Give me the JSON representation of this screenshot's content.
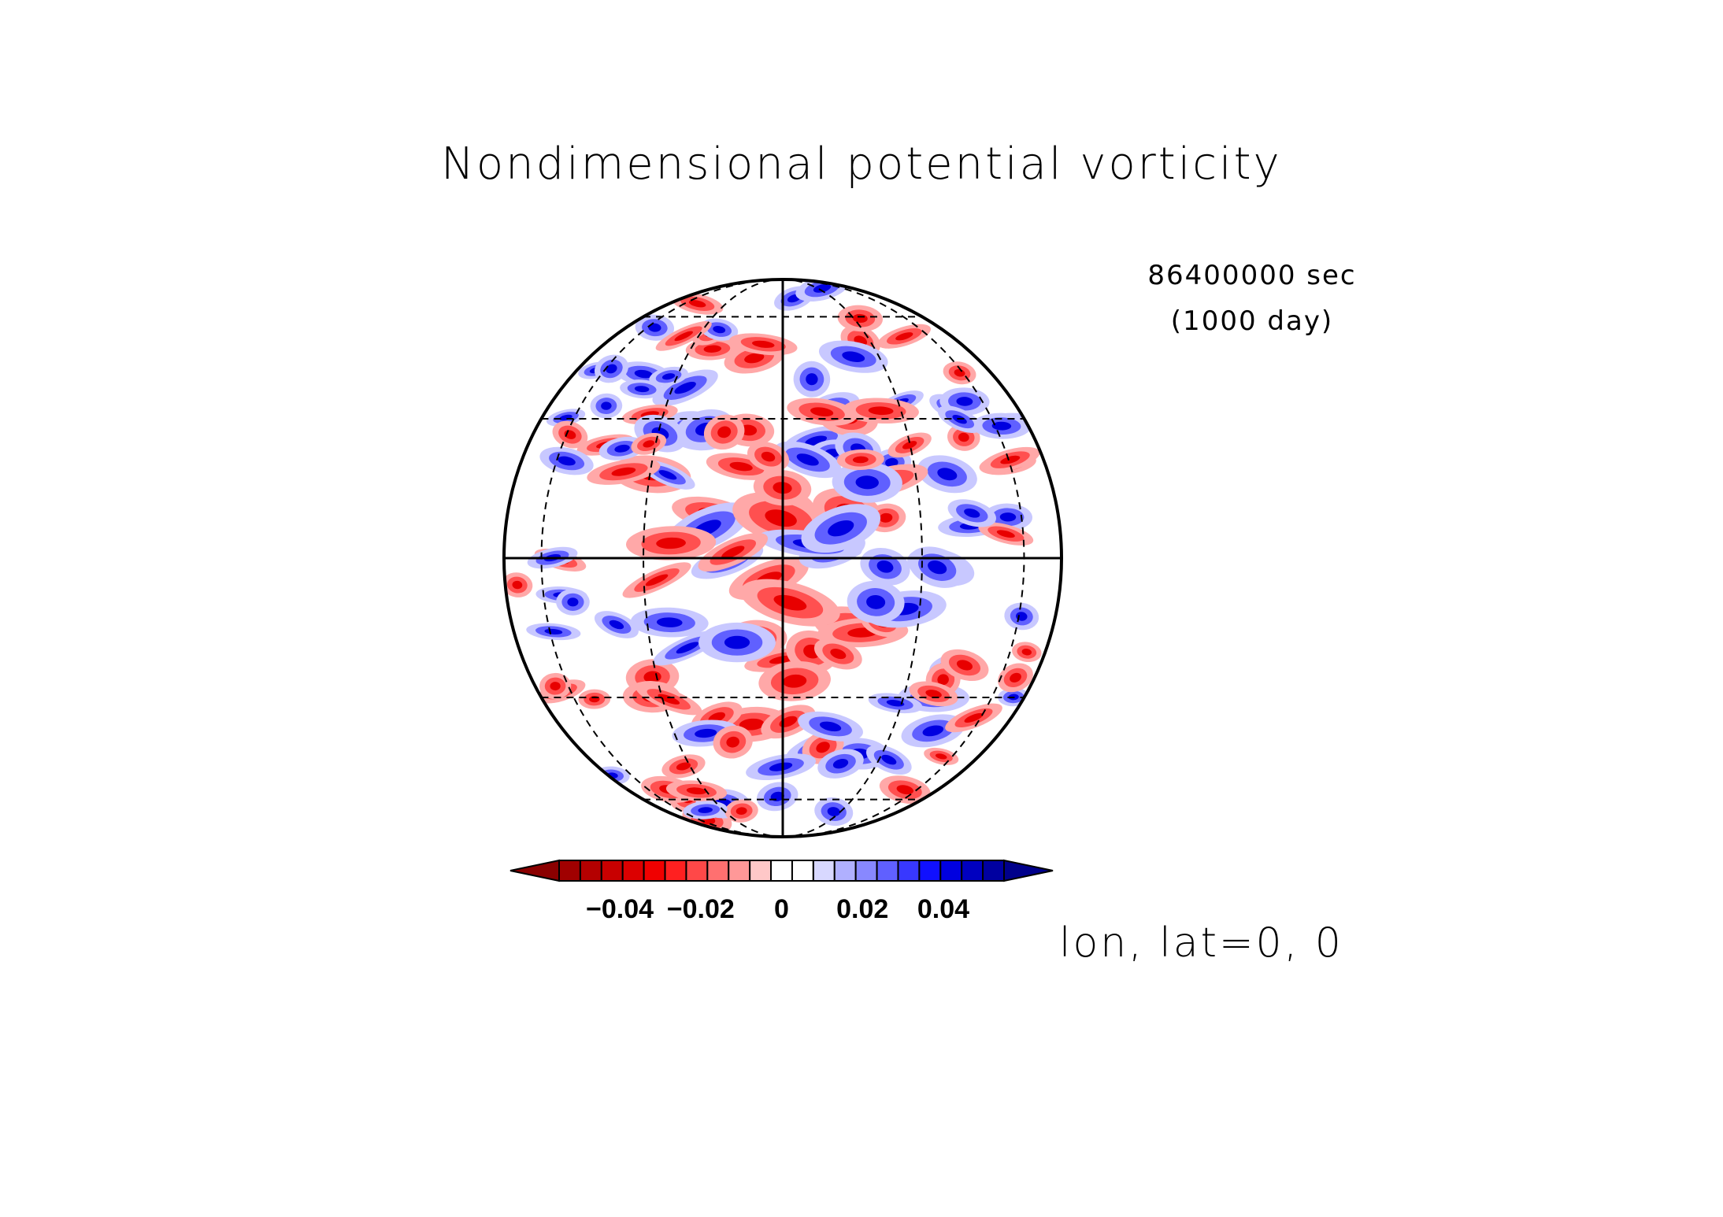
{
  "title": "Nondimensional potential vorticity",
  "time": {
    "seconds": "86400000 sec",
    "days": "(1000 day)"
  },
  "projection_label": "lon, lat=0, 0",
  "colorbar": {
    "colors": [
      "#8b0000",
      "#a00000",
      "#b40000",
      "#c80000",
      "#dc0000",
      "#f00000",
      "#ff2020",
      "#ff4848",
      "#ff7070",
      "#ff9898",
      "#ffc8c8",
      "#ffffff",
      "#ffffff",
      "#d8d8ff",
      "#b0b0ff",
      "#8888ff",
      "#6060ff",
      "#3838ff",
      "#1010ff",
      "#0000e0",
      "#0000c0",
      "#0000a0",
      "#00008b"
    ],
    "ticks": [
      {
        "value": -0.04,
        "label": "−0.04"
      },
      {
        "value": -0.02,
        "label": "−0.02"
      },
      {
        "value": 0,
        "label": "0"
      },
      {
        "value": 0.02,
        "label": "0.02"
      },
      {
        "value": 0.04,
        "label": "0.04"
      }
    ],
    "min": -0.055,
    "max": 0.055
  },
  "map": {
    "type": "orthographic",
    "center_lon": 0,
    "center_lat": 0,
    "graticule_lat": [
      -60,
      -30,
      30,
      60
    ],
    "graticule_lon": [
      -60,
      -30,
      30,
      60
    ],
    "palette": {
      "strong_red": "#e80000",
      "red": "#ff5050",
      "light_red": "#ffa8a8",
      "light_blue": "#c8c8ff",
      "blue": "#6060ff",
      "strong_blue": "#0000e0"
    }
  }
}
